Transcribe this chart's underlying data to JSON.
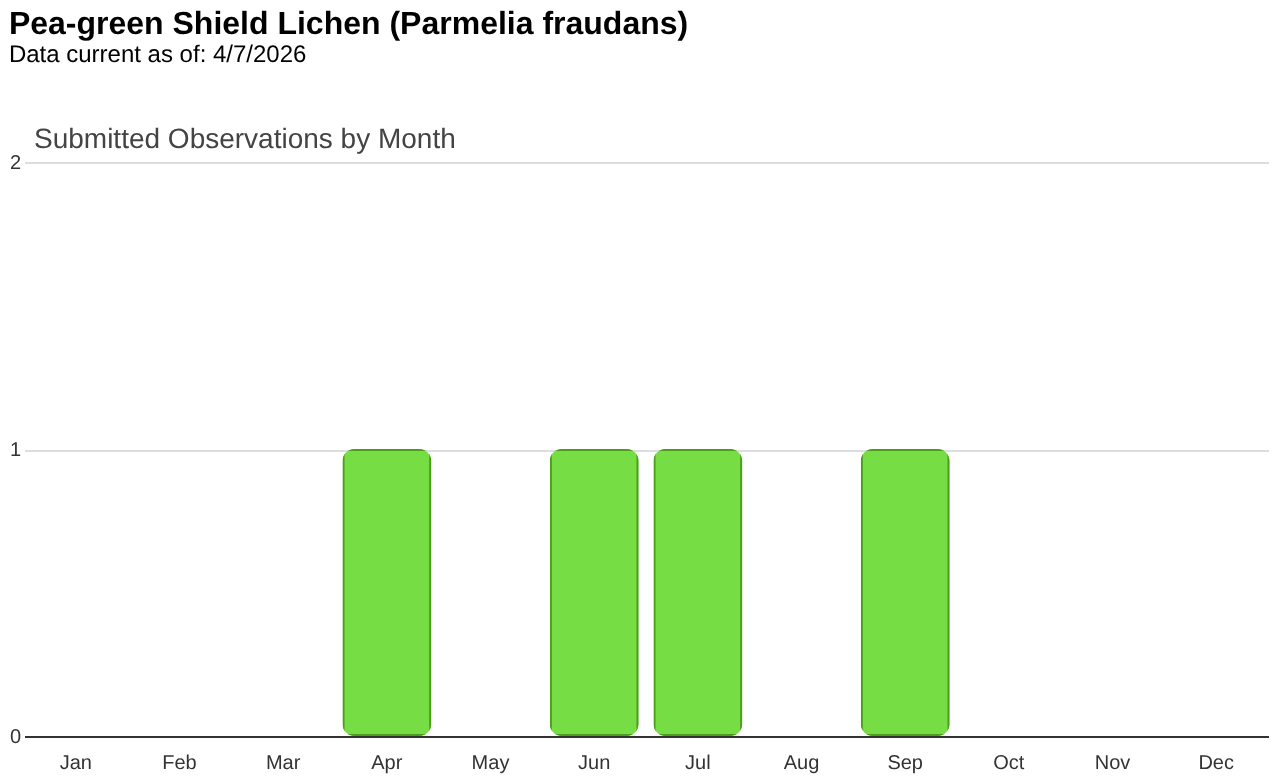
{
  "chart_data": {
    "type": "bar",
    "title": "Pea-green Shield Lichen   (Parmelia fraudans)",
    "subtitle": "Data current as of: 4/7/2026",
    "annotations": [
      "Submitted Observations by Month"
    ],
    "categories": [
      "Jan",
      "Feb",
      "Mar",
      "Apr",
      "May",
      "Jun",
      "Jul",
      "Aug",
      "Sep",
      "Oct",
      "Nov",
      "Dec"
    ],
    "values": [
      0,
      0,
      0,
      1,
      0,
      1,
      1,
      0,
      1,
      0,
      0,
      0
    ],
    "color": "#77dd44",
    "ylim": [
      0,
      2
    ],
    "yticks": [
      0,
      1,
      2
    ],
    "grid": "y"
  }
}
